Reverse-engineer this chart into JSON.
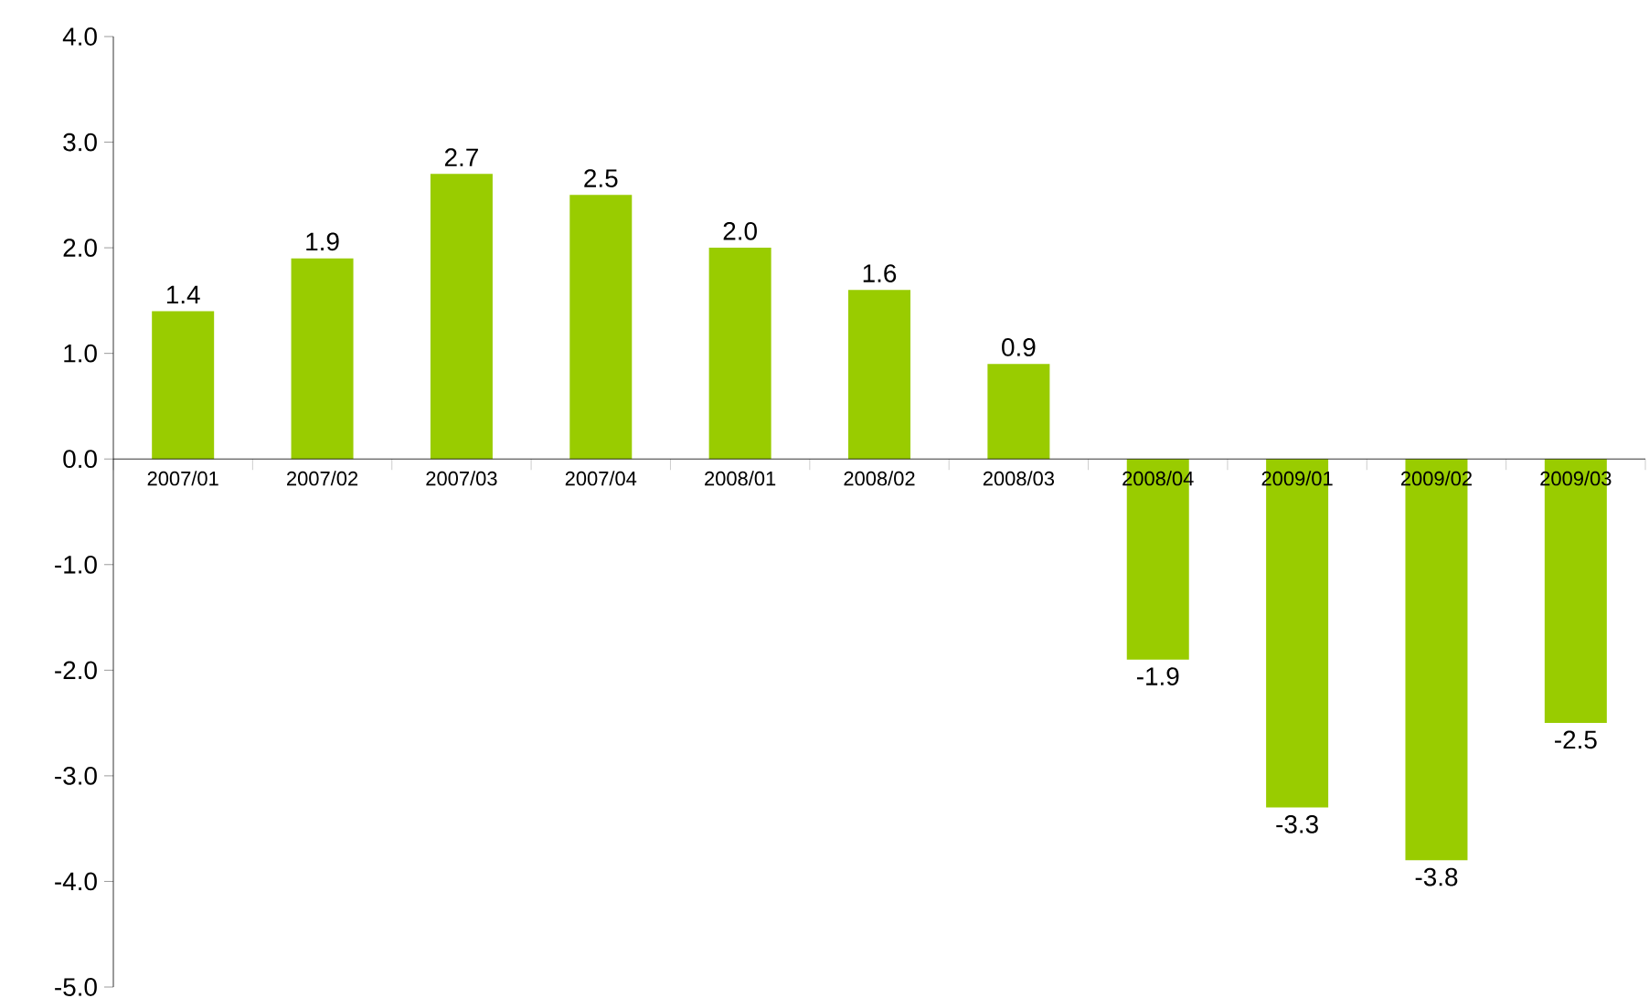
{
  "chart_data": {
    "type": "bar",
    "categories": [
      "2007/01",
      "2007/02",
      "2007/03",
      "2007/04",
      "2008/01",
      "2008/02",
      "2008/03",
      "2008/04",
      "2009/01",
      "2009/02",
      "2009/03"
    ],
    "values": [
      1.4,
      1.9,
      2.7,
      2.5,
      2.0,
      1.6,
      0.9,
      -1.9,
      -3.3,
      -3.8,
      -2.5
    ],
    "value_labels": [
      "1.4",
      "1.9",
      "2.7",
      "2.5",
      "2.0",
      "1.6",
      "0.9",
      "-1.9",
      "-3.3",
      "-3.8",
      "-2.5"
    ],
    "color": "#99cc00",
    "ylim": [
      -5,
      4
    ],
    "yticks": [
      {
        "value": -5,
        "label": "-5.0"
      },
      {
        "value": -4,
        "label": "-4.0"
      },
      {
        "value": -3,
        "label": "-3.0"
      },
      {
        "value": -2,
        "label": "-2.0"
      },
      {
        "value": -1,
        "label": "-1.0"
      },
      {
        "value": 0,
        "label": "0.0"
      },
      {
        "value": 1,
        "label": "1.0"
      },
      {
        "value": 2,
        "label": "2.0"
      },
      {
        "value": 3,
        "label": "3.0"
      },
      {
        "value": 4,
        "label": "4.0"
      }
    ]
  }
}
